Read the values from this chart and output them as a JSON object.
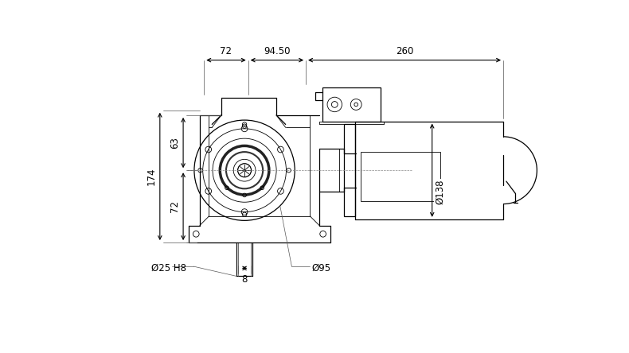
{
  "bg_color": "#ffffff",
  "line_color": "#000000",
  "annotations": {
    "dim_72_top": "72",
    "dim_9450_top": "94.50",
    "dim_260_top": "260",
    "dim_174_left": "174",
    "dim_63_left": "63",
    "dim_72_left": "72",
    "dim_phi25": "Ø25 H8",
    "dim_8": "8",
    "dim_phi95": "Ø95",
    "dim_phi138": "Ø138"
  },
  "figsize": [
    7.9,
    4.44
  ],
  "dpi": 100
}
